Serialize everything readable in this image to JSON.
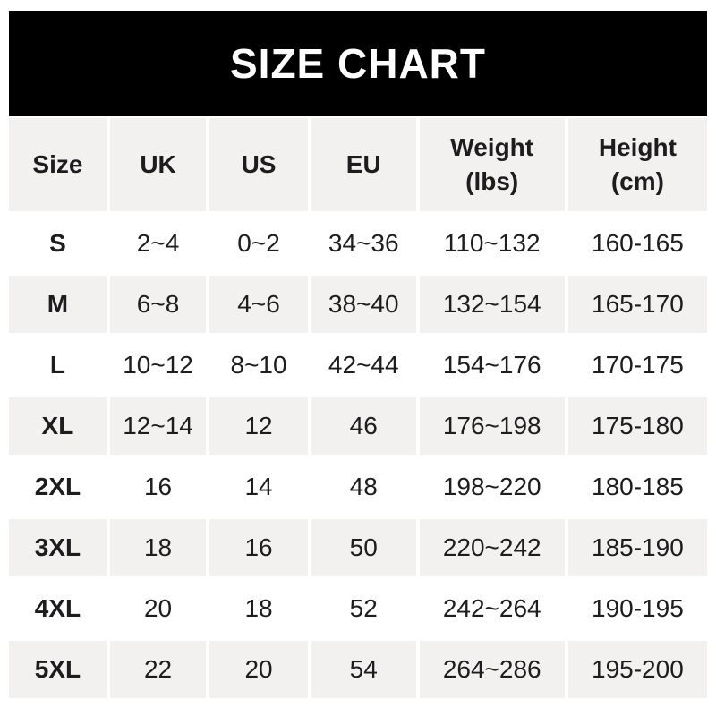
{
  "title": "SIZE CHART",
  "colors": {
    "banner_bg": "#000000",
    "banner_text": "#ffffff",
    "row_alt_bg": "#f2f1f0",
    "row_bg": "#ffffff",
    "text": "#1d1d1f"
  },
  "chart_data": {
    "type": "table",
    "title": "SIZE CHART",
    "columns": [
      "Size",
      "UK",
      "US",
      "EU",
      "Weight\n(lbs)",
      "Height\n(cm)"
    ],
    "rows": [
      [
        "S",
        "2~4",
        "0~2",
        "34~36",
        "110~132",
        "160-165"
      ],
      [
        "M",
        "6~8",
        "4~6",
        "38~40",
        "132~154",
        "165-170"
      ],
      [
        "L",
        "10~12",
        "8~10",
        "42~44",
        "154~176",
        "170-175"
      ],
      [
        "XL",
        "12~14",
        "12",
        "46",
        "176~198",
        "175-180"
      ],
      [
        "2XL",
        "16",
        "14",
        "48",
        "198~220",
        "180-185"
      ],
      [
        "3XL",
        "18",
        "16",
        "50",
        "220~242",
        "185-190"
      ],
      [
        "4XL",
        "20",
        "18",
        "52",
        "242~264",
        "190-195"
      ],
      [
        "5XL",
        "22",
        "20",
        "54",
        "264~286",
        "195-200"
      ]
    ],
    "layout": {
      "column_width_pct": [
        14.4,
        14.2,
        14.5,
        15.4,
        21.2,
        20.3
      ],
      "striped": true,
      "stripe_pattern": "header gray, data rows alternate white/gray starting white"
    }
  }
}
